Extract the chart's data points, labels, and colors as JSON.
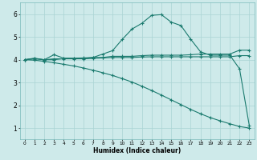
{
  "xlabel": "Humidex (Indice chaleur)",
  "bg_color": "#ceeaea",
  "grid_color": "#aad4d4",
  "line_color": "#1a7a6e",
  "xlim": [
    -0.5,
    23.5
  ],
  "ylim": [
    0.5,
    6.5
  ],
  "xticks": [
    0,
    1,
    2,
    3,
    4,
    5,
    6,
    7,
    8,
    9,
    10,
    11,
    12,
    13,
    14,
    15,
    16,
    17,
    18,
    19,
    20,
    21,
    22,
    23
  ],
  "yticks": [
    1,
    2,
    3,
    4,
    5,
    6
  ],
  "line1_x": [
    0,
    1,
    2,
    3,
    4,
    5,
    6,
    7,
    8,
    9,
    10,
    11,
    12,
    13,
    14,
    15,
    16,
    17,
    18,
    19,
    20,
    21,
    22,
    23
  ],
  "line1_y": [
    4.0,
    4.07,
    4.0,
    4.22,
    4.07,
    4.07,
    4.08,
    4.1,
    4.25,
    4.4,
    4.9,
    5.35,
    5.6,
    5.95,
    5.98,
    5.65,
    5.5,
    4.9,
    4.35,
    4.2,
    4.2,
    4.2,
    3.6,
    1.1
  ],
  "line2_x": [
    0,
    1,
    2,
    3,
    4,
    5,
    6,
    7,
    8,
    9,
    10,
    11,
    12,
    13,
    14,
    15,
    16,
    17,
    18,
    19,
    20,
    21,
    22,
    23
  ],
  "line2_y": [
    4.0,
    4.05,
    4.0,
    4.0,
    4.05,
    4.05,
    4.05,
    4.1,
    4.1,
    4.15,
    4.15,
    4.15,
    4.18,
    4.2,
    4.2,
    4.2,
    4.2,
    4.22,
    4.25,
    4.25,
    4.25,
    4.25,
    4.42,
    4.42
  ],
  "line3_x": [
    0,
    1,
    2,
    3,
    4,
    5,
    6,
    7,
    8,
    9,
    10,
    11,
    12,
    13,
    14,
    15,
    16,
    17,
    18,
    19,
    20,
    21,
    22,
    23
  ],
  "line3_y": [
    4.0,
    4.04,
    4.0,
    4.04,
    4.04,
    4.04,
    4.04,
    4.06,
    4.08,
    4.1,
    4.1,
    4.1,
    4.12,
    4.13,
    4.13,
    4.13,
    4.13,
    4.13,
    4.13,
    4.13,
    4.13,
    4.13,
    4.18,
    4.18
  ],
  "line4_x": [
    0,
    1,
    2,
    3,
    4,
    5,
    6,
    7,
    8,
    9,
    10,
    11,
    12,
    13,
    14,
    15,
    16,
    17,
    18,
    19,
    20,
    21,
    22,
    23
  ],
  "line4_y": [
    4.0,
    3.98,
    3.93,
    3.87,
    3.8,
    3.73,
    3.64,
    3.54,
    3.43,
    3.31,
    3.17,
    3.02,
    2.84,
    2.65,
    2.45,
    2.24,
    2.03,
    1.82,
    1.63,
    1.46,
    1.32,
    1.19,
    1.07,
    1.0
  ]
}
